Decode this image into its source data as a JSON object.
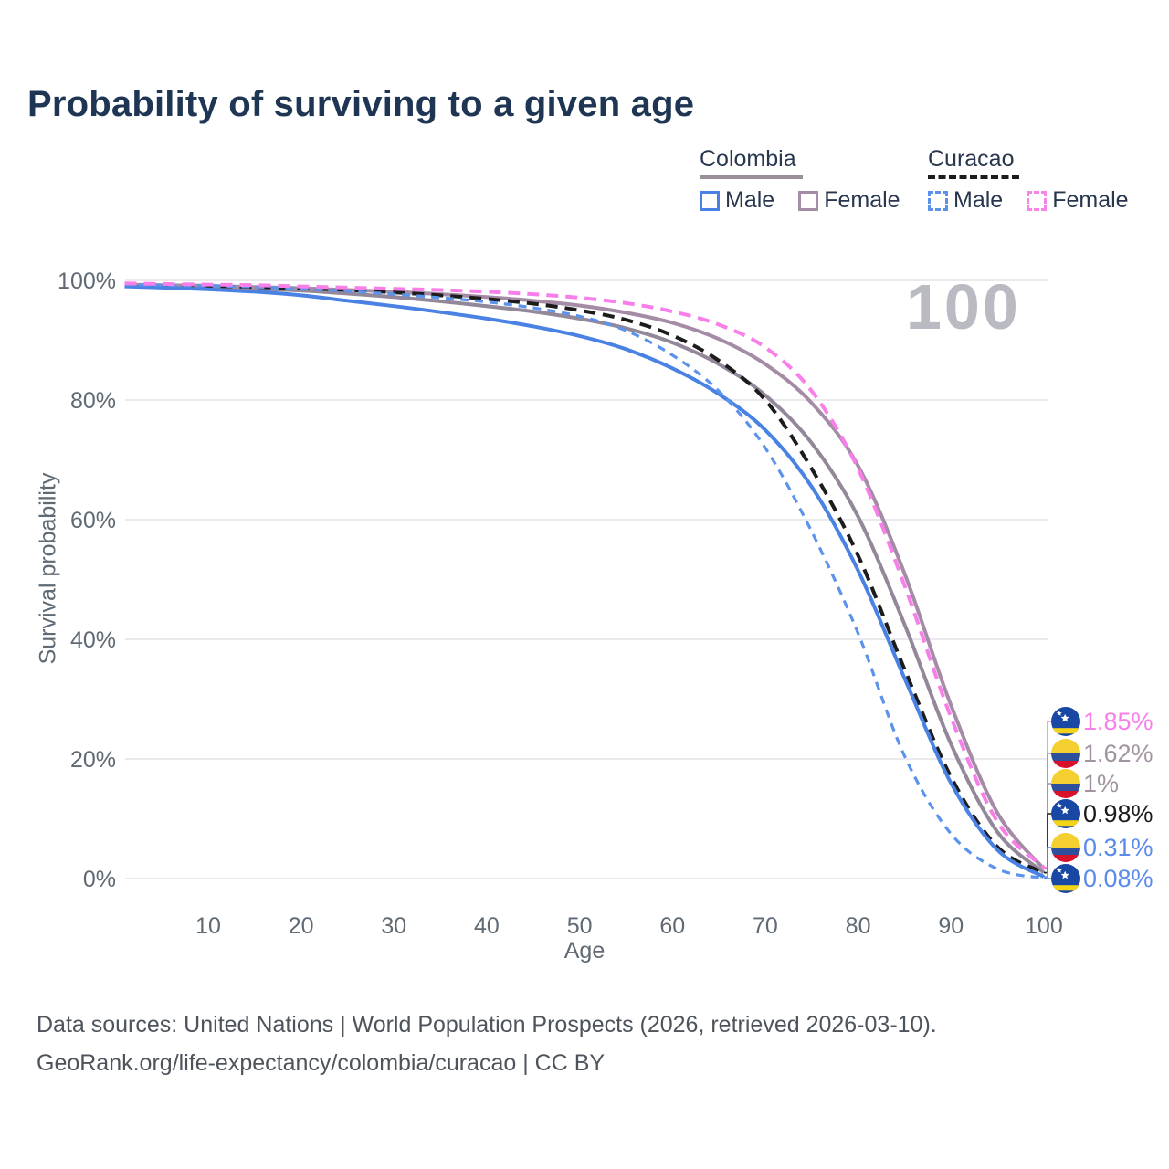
{
  "title": "Probability of surviving to a given age",
  "legend": {
    "colombia": {
      "title": "Colombia",
      "male": "Male",
      "female": "Female"
    },
    "curacao": {
      "title": "Curacao",
      "male": "Male",
      "female": "Female"
    }
  },
  "watermark": "100",
  "footer": {
    "line1": "Data sources: United Nations | World Population Prospects (2026, retrieved 2026-03-10).",
    "line2": "GeoRank.org/life-expectancy/colombia/curacao | CC BY"
  },
  "colors": {
    "title_text": "#1e3553",
    "axis_text": "#5f6a74",
    "gridline": "#e9e9ee",
    "watermark": "#b9bac2",
    "colombia_male": "#4a82e4",
    "colombia_female": "#a58ca6",
    "colombia_all": "#93879a",
    "curacao_male": "#5b93ec",
    "curacao_all": "#1c1c1c",
    "curacao_female": "#f87ee9",
    "end_label_blue": "#5b8bea",
    "end_label_mauve": "#a193a1",
    "flag_colombia_yellow": "#f3cf2f",
    "flag_colombia_blue": "#2e4f9b",
    "flag_colombia_red": "#d8122a",
    "flag_curacao_blue": "#1947a4",
    "flag_curacao_yellow": "#f5d418"
  },
  "chart_data": {
    "type": "line",
    "title": "Probability of surviving to a given age",
    "xlabel": "Age",
    "ylabel": "Survival probability",
    "xlim": [
      1,
      100
    ],
    "ylim": [
      0,
      100
    ],
    "grid": "horizontal",
    "legend_position": "top-right",
    "x_ticks": [
      {
        "label": "10",
        "value": 10
      },
      {
        "label": "20",
        "value": 20
      },
      {
        "label": "30",
        "value": 30
      },
      {
        "label": "40",
        "value": 40
      },
      {
        "label": "50",
        "value": 50
      },
      {
        "label": "60",
        "value": 60
      },
      {
        "label": "70",
        "value": 70
      },
      {
        "label": "80",
        "value": 80
      },
      {
        "label": "90",
        "value": 90
      },
      {
        "label": "100",
        "value": 100
      }
    ],
    "y_ticks": [
      {
        "label": "100%",
        "value": 100
      },
      {
        "label": "80%",
        "value": 80
      },
      {
        "label": "60%",
        "value": 60
      },
      {
        "label": "40%",
        "value": 40
      },
      {
        "label": "20%",
        "value": 20
      },
      {
        "label": "0%",
        "value": 0
      }
    ],
    "x": [
      1,
      5,
      10,
      15,
      20,
      25,
      30,
      35,
      40,
      45,
      50,
      55,
      60,
      65,
      70,
      75,
      80,
      85,
      90,
      95,
      100
    ],
    "series": [
      {
        "name": "colombia-all",
        "country": "Colombia",
        "sex": "All",
        "style": "solid",
        "color": "#93879a",
        "values": [
          99.2,
          99.0,
          98.8,
          98.6,
          98.3,
          97.8,
          97.2,
          96.5,
          95.7,
          94.8,
          93.6,
          92.0,
          89.6,
          86.0,
          80.8,
          72.8,
          60.5,
          42.5,
          22.5,
          7.8,
          1.0
        ]
      },
      {
        "name": "colombia-female",
        "country": "Colombia",
        "sex": "Female",
        "style": "solid",
        "color": "#a58ca6",
        "values": [
          99.3,
          99.2,
          99.1,
          98.9,
          98.7,
          98.4,
          98.1,
          97.7,
          97.2,
          96.6,
          95.8,
          94.6,
          92.9,
          90.2,
          86.0,
          79.5,
          69.0,
          51.0,
          29.0,
          11.0,
          1.62
        ]
      },
      {
        "name": "curacao-all",
        "country": "Curacao",
        "sex": "All",
        "style": "dashed",
        "color": "#1c1c1c",
        "values": [
          99.3,
          99.2,
          99.1,
          98.9,
          98.7,
          98.4,
          98.0,
          97.5,
          96.9,
          96.1,
          95.0,
          93.4,
          90.8,
          86.6,
          80.0,
          68.5,
          54.0,
          35.0,
          17.0,
          5.3,
          0.98
        ]
      },
      {
        "name": "colombia-male",
        "country": "Colombia",
        "sex": "Male",
        "style": "solid",
        "color": "#4a82e4",
        "values": [
          99.0,
          98.8,
          98.5,
          98.1,
          97.5,
          96.6,
          95.7,
          94.7,
          93.6,
          92.3,
          90.7,
          88.5,
          85.3,
          81.0,
          75.0,
          65.5,
          51.5,
          33.5,
          16.0,
          4.8,
          0.31
        ]
      },
      {
        "name": "curacao-male",
        "country": "Curacao",
        "sex": "Male",
        "style": "dashed",
        "color": "#5b93ec",
        "values": [
          99.3,
          99.2,
          99.1,
          98.9,
          98.6,
          98.2,
          97.7,
          97.1,
          96.4,
          95.4,
          94.0,
          91.6,
          87.5,
          81.5,
          72.0,
          58.0,
          41.0,
          20.5,
          7.5,
          1.6,
          0.08
        ]
      },
      {
        "name": "curacao-female",
        "country": "Curacao",
        "sex": "Female",
        "style": "dashed",
        "color": "#f87ee9",
        "values": [
          99.5,
          99.4,
          99.3,
          99.2,
          99.0,
          98.8,
          98.6,
          98.4,
          98.1,
          97.7,
          97.1,
          96.2,
          94.8,
          92.6,
          88.8,
          81.5,
          68.5,
          49.0,
          27.0,
          9.5,
          1.85
        ]
      }
    ],
    "end_labels": [
      {
        "text": "1.85%",
        "series": "curacao-female",
        "flag": "curacao",
        "color": "#f87ee9"
      },
      {
        "text": "1.62%",
        "series": "colombia-female",
        "flag": "colombia",
        "color": "#a193a1"
      },
      {
        "text": "1%",
        "series": "colombia-all",
        "flag": "colombia",
        "color": "#a193a1"
      },
      {
        "text": "0.98%",
        "series": "curacao-all",
        "flag": "curacao",
        "color": "#1c1c1c"
      },
      {
        "text": "0.31%",
        "series": "colombia-male",
        "flag": "colombia",
        "color": "#5b8bea"
      },
      {
        "text": "0.08%",
        "series": "curacao-male",
        "flag": "curacao",
        "color": "#5b8bea"
      }
    ]
  }
}
